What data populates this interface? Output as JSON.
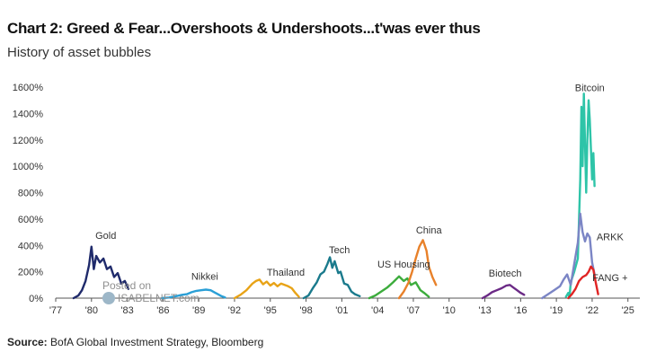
{
  "header": {
    "title": "Chart 2: Greed & Fear...Overshoots & Undershoots...t'was ever thus",
    "subtitle": "History of asset bubbles"
  },
  "footer": {
    "source_label": "Source:",
    "source_text": "BofA Global Investment Strategy, Bloomberg"
  },
  "watermark": {
    "line1": "Posted on",
    "line2": "ISABELNET.com"
  },
  "chart_data": {
    "type": "line",
    "title": "",
    "xlabel": "",
    "ylabel": "",
    "xlim": [
      1977,
      2026
    ],
    "ylim": [
      0,
      1600
    ],
    "grid": false,
    "x_ticks": [
      1977,
      1980,
      1983,
      1986,
      1989,
      1992,
      1995,
      1998,
      2001,
      2004,
      2007,
      2010,
      2013,
      2016,
      2019,
      2022,
      2025
    ],
    "x_tick_labels": [
      "'77",
      "'80",
      "'83",
      "'86",
      "'89",
      "'92",
      "'95",
      "'98",
      "'01",
      "'04",
      "'07",
      "'10",
      "'13",
      "'16",
      "'19",
      "'22",
      "'25"
    ],
    "y_ticks": [
      0,
      200,
      400,
      600,
      800,
      1000,
      1200,
      1400,
      1600
    ],
    "y_tick_labels": [
      "0%",
      "200%",
      "400%",
      "600%",
      "800%",
      "1000%",
      "1200%",
      "1400%",
      "1600%"
    ],
    "series": [
      {
        "name": "Gold",
        "color": "#1f2a6b",
        "label_pos": [
          1981.2,
          450
        ],
        "points": [
          [
            1978.5,
            0
          ],
          [
            1978.9,
            20
          ],
          [
            1979.2,
            60
          ],
          [
            1979.5,
            130
          ],
          [
            1979.8,
            250
          ],
          [
            1980.0,
            390
          ],
          [
            1980.2,
            220
          ],
          [
            1980.4,
            320
          ],
          [
            1980.7,
            270
          ],
          [
            1981.0,
            300
          ],
          [
            1981.3,
            220
          ],
          [
            1981.6,
            240
          ],
          [
            1981.9,
            160
          ],
          [
            1982.2,
            190
          ],
          [
            1982.5,
            110
          ],
          [
            1982.8,
            130
          ],
          [
            1983.1,
            70
          ]
        ]
      },
      {
        "name": "Nikkei",
        "color": "#2a9fd6",
        "label_pos": [
          1989.5,
          140
        ],
        "points": [
          [
            1985.9,
            0
          ],
          [
            1986.5,
            5
          ],
          [
            1987.1,
            15
          ],
          [
            1987.6,
            25
          ],
          [
            1988.0,
            30
          ],
          [
            1988.4,
            45
          ],
          [
            1988.8,
            55
          ],
          [
            1989.2,
            60
          ],
          [
            1989.6,
            65
          ],
          [
            1990.0,
            60
          ],
          [
            1990.3,
            45
          ],
          [
            1990.6,
            30
          ],
          [
            1990.9,
            15
          ],
          [
            1991.2,
            5
          ]
        ]
      },
      {
        "name": "Thailand",
        "color": "#e8a317",
        "label_pos": [
          1996.3,
          170
        ],
        "points": [
          [
            1992.0,
            0
          ],
          [
            1992.5,
            25
          ],
          [
            1993.0,
            60
          ],
          [
            1993.5,
            110
          ],
          [
            1993.8,
            130
          ],
          [
            1994.1,
            140
          ],
          [
            1994.4,
            105
          ],
          [
            1994.7,
            125
          ],
          [
            1995.0,
            95
          ],
          [
            1995.3,
            115
          ],
          [
            1995.6,
            90
          ],
          [
            1995.9,
            110
          ],
          [
            1996.2,
            100
          ],
          [
            1996.5,
            90
          ],
          [
            1996.8,
            75
          ],
          [
            1997.1,
            40
          ],
          [
            1997.4,
            10
          ]
        ]
      },
      {
        "name": "Tech",
        "color": "#1a7a8c",
        "label_pos": [
          2000.8,
          340
        ],
        "points": [
          [
            1997.8,
            0
          ],
          [
            1998.2,
            20
          ],
          [
            1998.6,
            80
          ],
          [
            1998.9,
            120
          ],
          [
            1999.2,
            180
          ],
          [
            1999.5,
            200
          ],
          [
            1999.8,
            260
          ],
          [
            2000.0,
            310
          ],
          [
            2000.2,
            230
          ],
          [
            2000.4,
            280
          ],
          [
            2000.7,
            190
          ],
          [
            2000.9,
            200
          ],
          [
            2001.2,
            110
          ],
          [
            2001.5,
            100
          ],
          [
            2001.8,
            50
          ],
          [
            2002.1,
            30
          ],
          [
            2002.5,
            15
          ]
        ]
      },
      {
        "name": "US Housing",
        "color": "#3cac3c",
        "label_pos": [
          2006.2,
          230
        ],
        "points": [
          [
            2003.3,
            0
          ],
          [
            2003.8,
            20
          ],
          [
            2004.3,
            50
          ],
          [
            2004.8,
            80
          ],
          [
            2005.3,
            120
          ],
          [
            2005.8,
            165
          ],
          [
            2006.2,
            130
          ],
          [
            2006.5,
            150
          ],
          [
            2006.8,
            100
          ],
          [
            2007.2,
            120
          ],
          [
            2007.6,
            60
          ],
          [
            2007.9,
            40
          ],
          [
            2008.3,
            10
          ]
        ]
      },
      {
        "name": "China",
        "color": "#e8812a",
        "label_pos": [
          2008.3,
          490
        ],
        "points": [
          [
            2005.8,
            0
          ],
          [
            2006.2,
            50
          ],
          [
            2006.6,
            120
          ],
          [
            2006.9,
            200
          ],
          [
            2007.2,
            300
          ],
          [
            2007.5,
            390
          ],
          [
            2007.8,
            440
          ],
          [
            2008.1,
            360
          ],
          [
            2008.3,
            240
          ],
          [
            2008.6,
            160
          ],
          [
            2008.9,
            100
          ]
        ]
      },
      {
        "name": "Biotech",
        "color": "#6b2a86",
        "label_pos": [
          2014.7,
          165
        ],
        "points": [
          [
            2012.8,
            0
          ],
          [
            2013.2,
            20
          ],
          [
            2013.6,
            45
          ],
          [
            2014.0,
            60
          ],
          [
            2014.4,
            75
          ],
          [
            2014.8,
            95
          ],
          [
            2015.1,
            100
          ],
          [
            2015.4,
            80
          ],
          [
            2015.7,
            60
          ],
          [
            2016.0,
            40
          ],
          [
            2016.3,
            25
          ]
        ]
      },
      {
        "name": "Bitcoin",
        "color": "#2ec4a8",
        "label_pos": [
          2021.8,
          1570
        ],
        "points": [
          [
            2019.8,
            10
          ],
          [
            2020.0,
            40
          ],
          [
            2020.1,
            0
          ],
          [
            2020.2,
            120
          ],
          [
            2020.5,
            200
          ],
          [
            2020.8,
            300
          ],
          [
            2021.0,
            900
          ],
          [
            2021.1,
            1450
          ],
          [
            2021.2,
            1000
          ],
          [
            2021.3,
            1550
          ],
          [
            2021.5,
            800
          ],
          [
            2021.6,
            1200
          ],
          [
            2021.7,
            1500
          ],
          [
            2021.8,
            1350
          ],
          [
            2022.0,
            900
          ],
          [
            2022.1,
            1100
          ],
          [
            2022.2,
            850
          ]
        ]
      },
      {
        "name": "ARKK",
        "color": "#7b85c5",
        "label_pos": [
          2023.5,
          440
        ],
        "points": [
          [
            2017.8,
            0
          ],
          [
            2018.3,
            30
          ],
          [
            2018.8,
            60
          ],
          [
            2019.3,
            90
          ],
          [
            2019.6,
            140
          ],
          [
            2019.9,
            180
          ],
          [
            2020.2,
            100
          ],
          [
            2020.5,
            260
          ],
          [
            2020.8,
            420
          ],
          [
            2021.0,
            640
          ],
          [
            2021.2,
            500
          ],
          [
            2021.4,
            430
          ],
          [
            2021.6,
            490
          ],
          [
            2021.8,
            460
          ],
          [
            2022.0,
            270
          ],
          [
            2022.2,
            180
          ]
        ]
      },
      {
        "name": "FANG +",
        "color": "#e02424",
        "label_pos": [
          2023.5,
          130
        ],
        "points": [
          [
            2020.0,
            0
          ],
          [
            2020.3,
            30
          ],
          [
            2020.6,
            70
          ],
          [
            2020.9,
            130
          ],
          [
            2021.2,
            160
          ],
          [
            2021.5,
            175
          ],
          [
            2021.7,
            200
          ],
          [
            2021.9,
            240
          ],
          [
            2022.1,
            215
          ],
          [
            2022.3,
            120
          ],
          [
            2022.5,
            30
          ]
        ]
      }
    ]
  }
}
